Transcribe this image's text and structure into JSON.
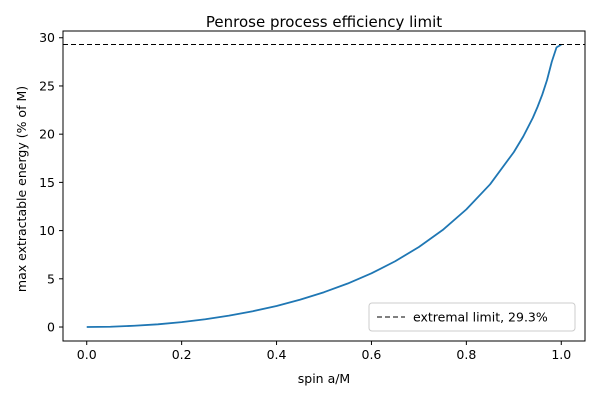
{
  "chart_data": {
    "type": "line",
    "title": "Penrose process efficiency limit",
    "xlabel": "spin a/M",
    "ylabel": "max extractable energy (% of M)",
    "xlim": [
      -0.05,
      1.05
    ],
    "ylim": [
      -1.45,
      30.7
    ],
    "xticks": [
      0.0,
      0.2,
      0.4,
      0.6,
      0.8,
      1.0
    ],
    "xtick_labels": [
      "0.0",
      "0.2",
      "0.4",
      "0.6",
      "0.8",
      "1.0"
    ],
    "yticks": [
      0,
      5,
      10,
      15,
      20,
      25,
      30
    ],
    "ytick_labels": [
      "0",
      "5",
      "10",
      "15",
      "20",
      "25",
      "30"
    ],
    "grid": false,
    "legend_position": "lower-right",
    "series": [
      {
        "color": "#1f77b4",
        "style": "solid",
        "x": [
          0.0,
          0.05,
          0.1,
          0.15,
          0.2,
          0.25,
          0.3,
          0.35,
          0.4,
          0.45,
          0.5,
          0.55,
          0.6,
          0.65,
          0.7,
          0.75,
          0.8,
          0.85,
          0.9,
          0.92,
          0.94,
          0.95,
          0.96,
          0.97,
          0.98,
          0.99,
          1.0
        ],
        "y": [
          0.0,
          0.03,
          0.13,
          0.28,
          0.51,
          0.81,
          1.18,
          1.64,
          2.18,
          2.84,
          3.61,
          4.51,
          5.57,
          6.82,
          8.3,
          10.06,
          12.2,
          14.8,
          18.14,
          19.77,
          21.69,
          22.83,
          24.11,
          25.62,
          27.51,
          29.0,
          29.29
        ]
      },
      {
        "name": "extremal limit, 29.3%",
        "color": "#000000",
        "style": "dashed",
        "hline": 29.3
      }
    ]
  }
}
